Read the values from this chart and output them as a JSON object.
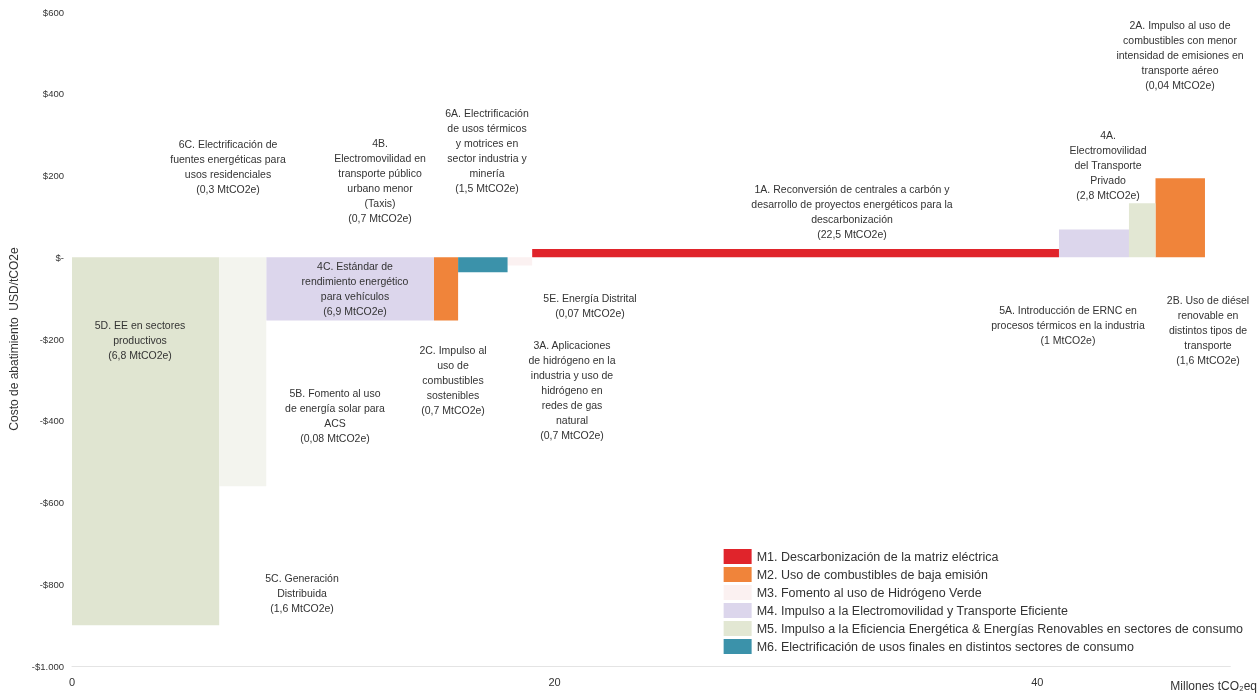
{
  "chart_data": {
    "type": "histogram",
    "xlabel": "Millones tCO₂eq",
    "ylabel": "Costo de abatimiento  USD/tCO2e",
    "bins": [
      0,
      6.1,
      8.05,
      15.0,
      16.0,
      18.05,
      19.07,
      40.9,
      43.8,
      44.9,
      46.95
    ],
    "series": [
      {
        "name": "M1. Descarbonización de la matriz eléctrica",
        "color": "#e0242b",
        "values": [
          null,
          null,
          null,
          null,
          null,
          null,
          20,
          null,
          null,
          null
        ]
      },
      {
        "name": "M2. Uso de combustibles de baja emisión",
        "color": "#f0843a",
        "values": [
          null,
          null,
          null,
          -155,
          null,
          null,
          null,
          null,
          null,
          193
        ]
      },
      {
        "name": "M3. Fomento al uso de Hidrógeno Verde",
        "color": "#fbf1f1",
        "values": [
          null,
          null,
          null,
          null,
          null,
          -20,
          null,
          null,
          null,
          null
        ]
      },
      {
        "name": "M4. Impulso a la Electromovilidad y Transporte Eficiente",
        "color": "#dcd6ec",
        "values": [
          null,
          null,
          -155,
          null,
          null,
          null,
          null,
          68,
          null,
          null
        ]
      },
      {
        "name": "M5. Impulso a la Eficiencia Energética & Energías Renovables en sectores de consumo",
        "color": "#e2e7d3",
        "colors": [
          "#e0e5d1",
          "#f3f4ee",
          null,
          null,
          null,
          null,
          null,
          null,
          "#e2e7d3",
          null
        ],
        "values": [
          -900,
          -560,
          null,
          null,
          null,
          null,
          null,
          null,
          132,
          null
        ]
      },
      {
        "name": "M6. Electrificación de usos finales en distintos sectores de consumo",
        "color": "#3b92aa",
        "values": [
          null,
          null,
          null,
          null,
          -37,
          null,
          null,
          null,
          null,
          null
        ]
      }
    ],
    "xlim": [
      0,
      48
    ],
    "xticks": [
      0,
      20,
      40
    ],
    "ylim": [
      -1000,
      600
    ],
    "yticks": [
      {
        "value": 600,
        "label": "$600"
      },
      {
        "value": 400,
        "label": "$400"
      },
      {
        "value": 200,
        "label": "$200"
      },
      {
        "value": 0,
        "label": "$-"
      },
      {
        "value": -200,
        "label": "-$200"
      },
      {
        "value": -400,
        "label": "-$400"
      },
      {
        "value": -600,
        "label": "-$600"
      },
      {
        "value": -800,
        "label": "-$800"
      },
      {
        "value": -1000,
        "label": "-$1.000"
      }
    ],
    "grid": false,
    "legend": "bottom right",
    "annotations": [
      "6C. Electrificación de\nfuentes energéticas para\nusos residenciales\n(0,3 MtCO2e)",
      "4B.\nElectromovilidad en\ntransporte público\nurbano menor\n(Taxis)\n(0,7 MtCO2e)",
      "6A. Electrificación\nde usos térmicos\ny motrices en\nsector industria y\nminería\n(1,5 MtCO2e)",
      "1A. Reconversión de centrales a carbón y\ndesarrollo de proyectos energéticos para la\ndescarbonización\n(22,5 MtCO2e)",
      "2A. Impulso al uso de\ncombustibles con menor\nintensidad de emisiones en\ntransporte aéreo\n(0,04 MtCO2e)",
      "4A.\nElectromovilidad\ndel Transporte\nPrivado\n(2,8 MtCO2e)",
      "4C. Estándar de\nrendimiento energético\npara vehículos\n(6,9 MtCO2e)",
      "5D. EE en sectores\nproductivos\n(6,8 MtCO2e)",
      "5E. Energía Distrital\n(0,07 MtCO2e)",
      "2C. Impulso al\nuso de\ncombustibles\nsostenibles\n(0,7 MtCO2e)",
      "3A. Aplicaciones\nde hidrógeno en la\nindustria y uso de\nhidrógeno en\nredes de gas\nnatural\n(0,7 MtCO2e)",
      "5B. Fomento al uso\nde energía solar para\nACS\n(0,08 MtCO2e)",
      "5C. Generación\nDistribuida\n(1,6 MtCO2e)",
      "5A. Introducción de ERNC en\nprocesos térmicos en la industria\n(1 MtCO2e)",
      "2B. Uso de diésel\nrenovable en\ndistintos tipos de\ntransporte\n(1,6 MtCO2e)"
    ]
  }
}
